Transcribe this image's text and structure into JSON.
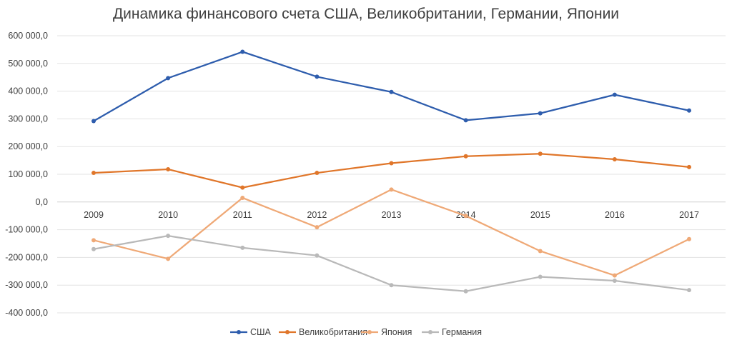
{
  "chart_data": {
    "type": "line",
    "title": "Динамика финансового счета США, Великобритании, Германии, Японии",
    "xlabel": "",
    "ylabel": "",
    "categories": [
      "2009",
      "2010",
      "2011",
      "2012",
      "2013",
      "2014",
      "2015",
      "2016",
      "2017"
    ],
    "ylim": [
      -400000,
      600000
    ],
    "yticks": [
      600000,
      500000,
      400000,
      300000,
      200000,
      100000,
      0,
      -100000,
      -200000,
      -300000,
      -400000
    ],
    "ytick_labels": [
      "600 000,0",
      "500 000,0",
      "400 000,0",
      "300 000,0",
      "200 000,0",
      "100 000,0",
      "0,0",
      "-100 000,0",
      "-200 000,0",
      "-300 000,0",
      "-400 000,0"
    ],
    "grid": true,
    "legend_position": "bottom",
    "series": [
      {
        "name": "США",
        "color": "#2E5DAD",
        "values": [
          292000,
          447000,
          542000,
          452000,
          397000,
          295000,
          320000,
          387000,
          330000
        ]
      },
      {
        "name": "Великобритания",
        "color": "#E0762A",
        "values": [
          105000,
          118000,
          52000,
          105000,
          140000,
          165000,
          174000,
          154000,
          126000
        ]
      },
      {
        "name": "Япония",
        "color": "#EFA977",
        "values": [
          -138000,
          -205000,
          15000,
          -91000,
          45000,
          -50000,
          -177000,
          -265000,
          -134000
        ]
      },
      {
        "name": "Германия",
        "color": "#B9B9B9",
        "values": [
          -170000,
          -122000,
          -165000,
          -193000,
          -300000,
          -322000,
          -270000,
          -284000,
          -318000
        ]
      }
    ]
  }
}
